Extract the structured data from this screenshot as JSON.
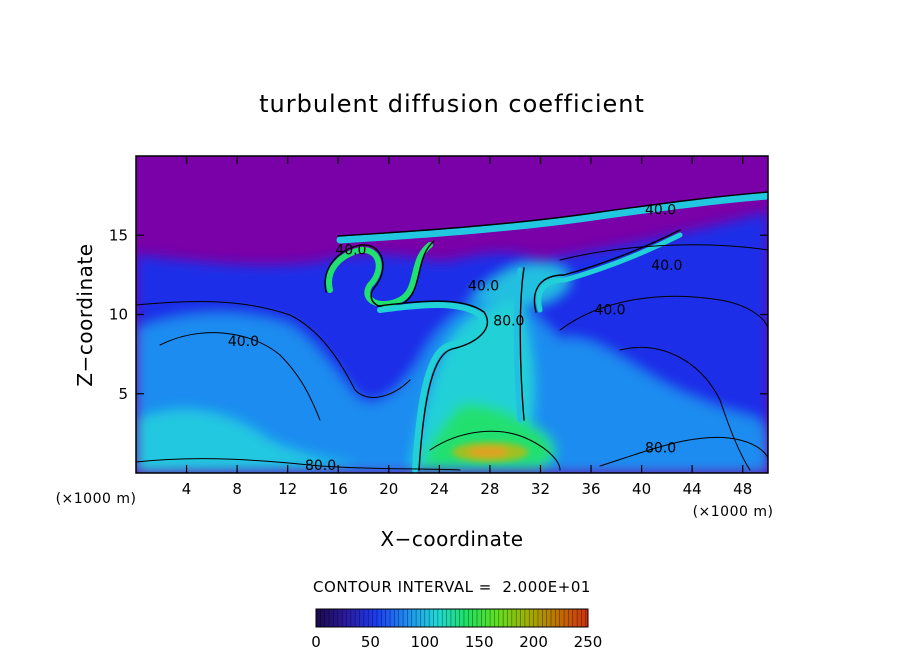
{
  "chart_data": {
    "type": "heatmap",
    "title": "turbulent diffusion coefficient",
    "xlabel": "X−coordinate",
    "ylabel": "Z−coordinate",
    "x_unit": "(×1000 m)",
    "y_unit": "(×1000 m)",
    "xlim": [
      0,
      50
    ],
    "ylim": [
      0,
      20
    ],
    "x_ticks": [
      4,
      8,
      12,
      16,
      20,
      24,
      28,
      32,
      36,
      40,
      44,
      48
    ],
    "y_ticks": [
      5,
      10,
      15
    ],
    "contour_interval_text": "CONTOUR INTERVAL =  2.000E+01",
    "contour_labels": [
      {
        "text": "40.0",
        "x": 8.5,
        "z": 8.0
      },
      {
        "text": "40.0",
        "x": 17.0,
        "z": 13.8
      },
      {
        "text": "40.0",
        "x": 27.5,
        "z": 11.5
      },
      {
        "text": "40.0",
        "x": 37.5,
        "z": 10.0
      },
      {
        "text": "40.0",
        "x": 42.0,
        "z": 12.8
      },
      {
        "text": "40.0",
        "x": 41.5,
        "z": 16.3
      },
      {
        "text": "80.0",
        "x": 14.6,
        "z": 0.2
      },
      {
        "text": "80.0",
        "x": 41.5,
        "z": 1.3
      },
      {
        "text": "80.0",
        "x": 29.5,
        "z": 9.3
      }
    ],
    "colorbar": {
      "min": 0,
      "max": 250,
      "ticks": [
        0,
        50,
        100,
        150,
        200,
        250
      ],
      "colors": [
        "#1a0a4a",
        "#2a1aa0",
        "#1c3cf0",
        "#1f8cf0",
        "#20d8d8",
        "#20e060",
        "#60e020",
        "#a0b000",
        "#c07000",
        "#d03010"
      ]
    },
    "field_colors": {
      "background": "#7a00a8",
      "low": "#1a2ee8",
      "mid": "#1c8cf0",
      "midhigh": "#22d0d8",
      "high": "#20e070",
      "peak": "#e0a020"
    },
    "grid": false,
    "legend": "none"
  }
}
